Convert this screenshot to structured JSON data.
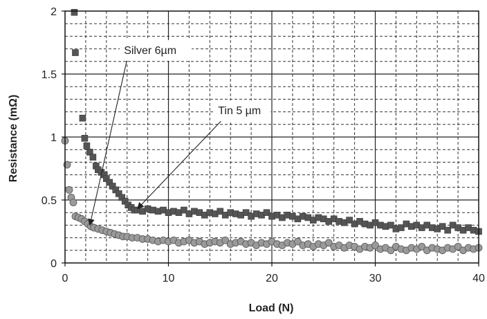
{
  "chart_data": {
    "type": "scatter",
    "xlabel": "Load (N)",
    "ylabel": "Resistance (mΩ)",
    "xlim": [
      0,
      40
    ],
    "ylim": [
      0,
      2
    ],
    "x_ticks": [
      0,
      10,
      20,
      30,
      40
    ],
    "y_ticks": [
      0,
      0.5,
      1,
      1.5,
      2
    ],
    "x_tick_labels": [
      "0",
      "10",
      "20",
      "30",
      "40"
    ],
    "y_tick_labels": [
      "0",
      "0.5",
      "1",
      "1.5",
      "2"
    ],
    "grid": "major solid, minor dashed",
    "legend": "none",
    "series": [
      {
        "name": "Tin 5 µm",
        "marker": "square",
        "color": "#555555",
        "points": [
          [
            0.9,
            1.99
          ],
          [
            1.0,
            1.67
          ],
          [
            1.7,
            1.15
          ],
          [
            1.9,
            0.99
          ],
          [
            2.1,
            0.93
          ],
          [
            2.4,
            0.88
          ],
          [
            2.7,
            0.84
          ],
          [
            3.0,
            0.77
          ],
          [
            3.2,
            0.74
          ],
          [
            3.5,
            0.72
          ],
          [
            3.8,
            0.7
          ],
          [
            4.0,
            0.67
          ],
          [
            4.3,
            0.64
          ],
          [
            4.6,
            0.61
          ],
          [
            4.9,
            0.58
          ],
          [
            5.2,
            0.55
          ],
          [
            5.5,
            0.52
          ],
          [
            5.8,
            0.49
          ],
          [
            6.1,
            0.46
          ],
          [
            6.4,
            0.44
          ],
          [
            6.7,
            0.42
          ],
          [
            7.0,
            0.42
          ],
          [
            7.5,
            0.41
          ],
          [
            8.0,
            0.43
          ],
          [
            8.5,
            0.42
          ],
          [
            9.0,
            0.41
          ],
          [
            9.5,
            0.42
          ],
          [
            10.0,
            0.4
          ],
          [
            10.5,
            0.41
          ],
          [
            11.0,
            0.4
          ],
          [
            11.5,
            0.42
          ],
          [
            12.0,
            0.39
          ],
          [
            12.5,
            0.41
          ],
          [
            13.0,
            0.4
          ],
          [
            13.5,
            0.38
          ],
          [
            14.0,
            0.4
          ],
          [
            14.5,
            0.39
          ],
          [
            15.0,
            0.41
          ],
          [
            15.5,
            0.38
          ],
          [
            16.0,
            0.4
          ],
          [
            16.5,
            0.39
          ],
          [
            17.0,
            0.38
          ],
          [
            17.5,
            0.4
          ],
          [
            18.0,
            0.37
          ],
          [
            18.5,
            0.39
          ],
          [
            19.0,
            0.38
          ],
          [
            19.5,
            0.4
          ],
          [
            20.0,
            0.37
          ],
          [
            20.5,
            0.38
          ],
          [
            21.0,
            0.36
          ],
          [
            21.5,
            0.38
          ],
          [
            22.0,
            0.37
          ],
          [
            22.5,
            0.35
          ],
          [
            23.0,
            0.37
          ],
          [
            23.5,
            0.36
          ],
          [
            24.0,
            0.34
          ],
          [
            24.5,
            0.36
          ],
          [
            25.0,
            0.35
          ],
          [
            25.5,
            0.33
          ],
          [
            26.0,
            0.35
          ],
          [
            26.5,
            0.33
          ],
          [
            27.0,
            0.32
          ],
          [
            27.5,
            0.34
          ],
          [
            28.0,
            0.31
          ],
          [
            28.5,
            0.33
          ],
          [
            29.0,
            0.31
          ],
          [
            29.5,
            0.3
          ],
          [
            30.0,
            0.32
          ],
          [
            30.5,
            0.3
          ],
          [
            31.0,
            0.29
          ],
          [
            31.5,
            0.3
          ],
          [
            32.0,
            0.27
          ],
          [
            32.5,
            0.28
          ],
          [
            33.0,
            0.31
          ],
          [
            33.5,
            0.29
          ],
          [
            34.0,
            0.3
          ],
          [
            34.5,
            0.28
          ],
          [
            35.0,
            0.3
          ],
          [
            35.5,
            0.28
          ],
          [
            36.0,
            0.27
          ],
          [
            36.5,
            0.29
          ],
          [
            37.0,
            0.26
          ],
          [
            37.5,
            0.3
          ],
          [
            38.0,
            0.28
          ],
          [
            38.5,
            0.26
          ],
          [
            39.0,
            0.28
          ],
          [
            39.5,
            0.26
          ],
          [
            40.0,
            0.25
          ]
        ]
      },
      {
        "name": "Silver 6µm",
        "marker": "circle",
        "color": "#9a9a9a",
        "points": [
          [
            0.0,
            0.97
          ],
          [
            0.2,
            0.78
          ],
          [
            0.4,
            0.58
          ],
          [
            0.6,
            0.52
          ],
          [
            0.8,
            0.48
          ],
          [
            1.0,
            0.37
          ],
          [
            1.3,
            0.36
          ],
          [
            1.6,
            0.35
          ],
          [
            1.9,
            0.33
          ],
          [
            2.2,
            0.31
          ],
          [
            2.5,
            0.29
          ],
          [
            2.8,
            0.28
          ],
          [
            3.2,
            0.27
          ],
          [
            3.6,
            0.26
          ],
          [
            4.0,
            0.25
          ],
          [
            4.4,
            0.24
          ],
          [
            4.8,
            0.23
          ],
          [
            5.2,
            0.22
          ],
          [
            5.6,
            0.21
          ],
          [
            6.0,
            0.21
          ],
          [
            6.5,
            0.2
          ],
          [
            7.0,
            0.2
          ],
          [
            7.5,
            0.19
          ],
          [
            8.0,
            0.19
          ],
          [
            8.5,
            0.18
          ],
          [
            9.0,
            0.17
          ],
          [
            9.5,
            0.18
          ],
          [
            10.0,
            0.17
          ],
          [
            10.5,
            0.18
          ],
          [
            11.0,
            0.16
          ],
          [
            11.5,
            0.17
          ],
          [
            12.0,
            0.18
          ],
          [
            12.5,
            0.16
          ],
          [
            13.0,
            0.17
          ],
          [
            13.5,
            0.15
          ],
          [
            14.0,
            0.16
          ],
          [
            14.5,
            0.17
          ],
          [
            15.0,
            0.16
          ],
          [
            15.5,
            0.18
          ],
          [
            16.0,
            0.15
          ],
          [
            16.5,
            0.16
          ],
          [
            17.0,
            0.17
          ],
          [
            17.5,
            0.15
          ],
          [
            18.0,
            0.16
          ],
          [
            18.5,
            0.14
          ],
          [
            19.0,
            0.16
          ],
          [
            19.5,
            0.15
          ],
          [
            20.0,
            0.17
          ],
          [
            20.5,
            0.15
          ],
          [
            21.0,
            0.14
          ],
          [
            21.5,
            0.16
          ],
          [
            22.0,
            0.15
          ],
          [
            22.5,
            0.17
          ],
          [
            23.0,
            0.14
          ],
          [
            23.5,
            0.15
          ],
          [
            24.0,
            0.13
          ],
          [
            24.5,
            0.15
          ],
          [
            25.0,
            0.14
          ],
          [
            25.5,
            0.16
          ],
          [
            26.0,
            0.13
          ],
          [
            26.5,
            0.14
          ],
          [
            27.0,
            0.12
          ],
          [
            27.5,
            0.14
          ],
          [
            28.0,
            0.13
          ],
          [
            28.5,
            0.11
          ],
          [
            29.0,
            0.13
          ],
          [
            29.5,
            0.12
          ],
          [
            30.0,
            0.14
          ],
          [
            30.5,
            0.11
          ],
          [
            31.0,
            0.12
          ],
          [
            31.5,
            0.1
          ],
          [
            32.0,
            0.13
          ],
          [
            32.5,
            0.11
          ],
          [
            33.0,
            0.1
          ],
          [
            33.5,
            0.12
          ],
          [
            34.0,
            0.11
          ],
          [
            34.5,
            0.13
          ],
          [
            35.0,
            0.1
          ],
          [
            35.5,
            0.12
          ],
          [
            36.0,
            0.11
          ],
          [
            36.5,
            0.1
          ],
          [
            37.0,
            0.12
          ],
          [
            37.5,
            0.11
          ],
          [
            38.0,
            0.13
          ],
          [
            38.5,
            0.1
          ],
          [
            39.0,
            0.12
          ],
          [
            39.5,
            0.11
          ],
          [
            40.0,
            0.12
          ]
        ]
      }
    ],
    "annotations": [
      {
        "text": "Silver 6µm",
        "box_data": [
          5.7,
          1.66
        ],
        "arrow_to": [
          2.4,
          0.3
        ]
      },
      {
        "text": "Tin 5 µm",
        "box_data": [
          14.8,
          1.18
        ],
        "arrow_to": [
          7.0,
          0.43
        ]
      }
    ]
  }
}
